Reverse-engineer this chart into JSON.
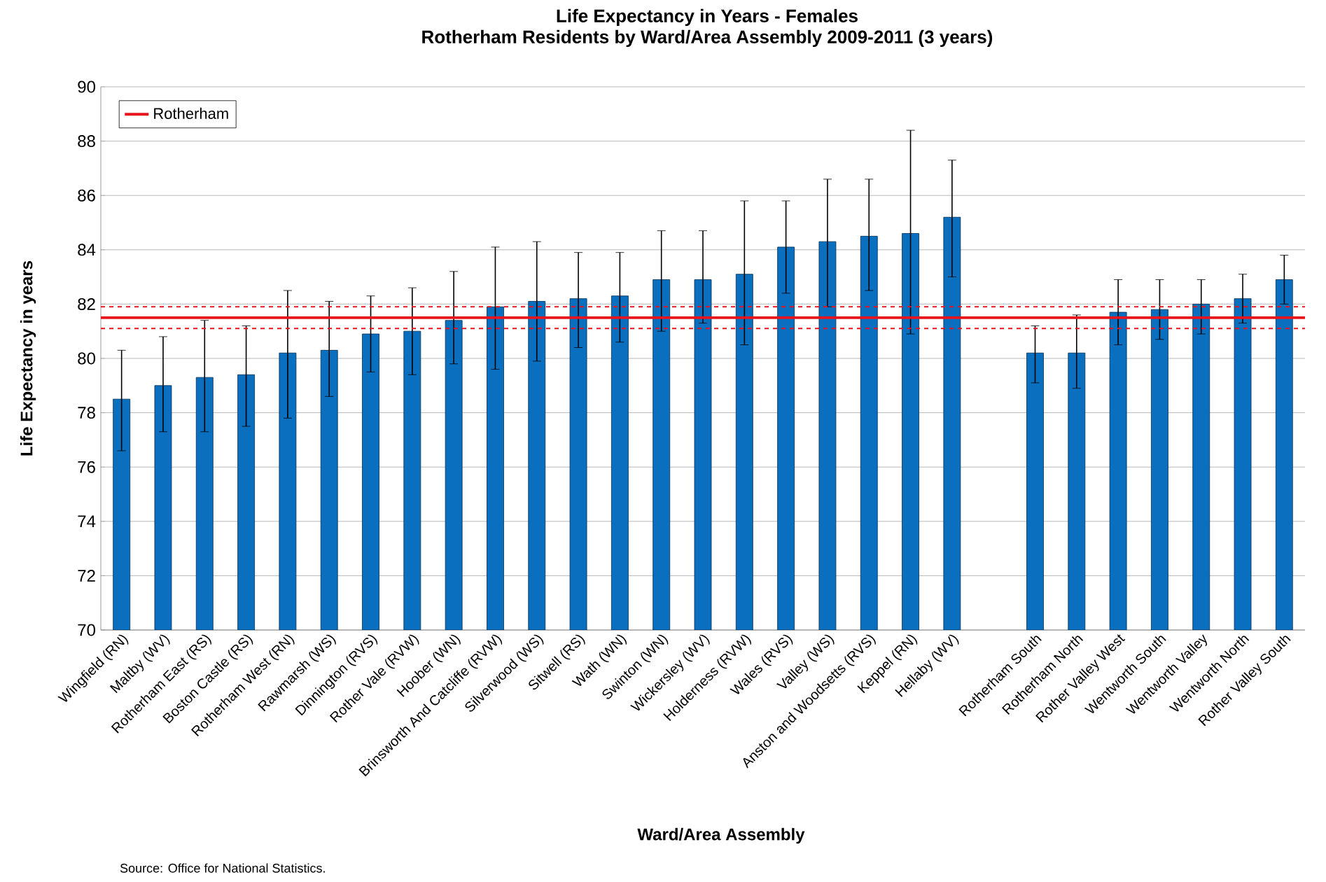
{
  "chart_data": {
    "type": "bar",
    "title": "Life Expectancy in Years - Females",
    "subtitle": "Rotherham Residents by Ward/Area Assembly 2009-2011 (3 years)",
    "xlabel": "Ward/Area Assembly",
    "ylabel": "Life Expectancy in years",
    "categories": [
      "Wingfield (RN)",
      "Maltby (WV)",
      "Rotherham East (RS)",
      "Boston Castle (RS)",
      "Rotherham West (RN)",
      "Rawmarsh (WS)",
      "Dinnington (RVS)",
      "Rother Vale (RVW)",
      "Hoober (WN)",
      "Brinsworth And Catcliffe (RVW)",
      "Silverwood (WS)",
      "Sitwell (RS)",
      "Wath (WN)",
      "Swinton (WN)",
      "Wickersley (WV)",
      "Holderness (RVW)",
      "Wales (RVS)",
      "Valley (WS)",
      "Anston and Woodsetts (RVS)",
      "Keppel (RN)",
      "Hellaby (WV)",
      null,
      "Rotherham South",
      "Rotherham North",
      "Rother Valley West",
      "Wentworth South",
      "Wentworth Valley",
      "Wentworth North",
      "Rother Valley South"
    ],
    "values": [
      78.5,
      79.0,
      79.3,
      79.4,
      80.2,
      80.3,
      80.9,
      81.0,
      81.4,
      81.9,
      82.1,
      82.2,
      82.3,
      82.9,
      82.9,
      83.1,
      84.1,
      84.3,
      84.5,
      84.6,
      85.2,
      null,
      80.2,
      80.2,
      81.7,
      81.8,
      82.0,
      82.2,
      82.9
    ],
    "errors": [
      [
        76.6,
        80.3
      ],
      [
        77.3,
        80.8
      ],
      [
        77.3,
        81.4
      ],
      [
        77.5,
        81.2
      ],
      [
        77.8,
        82.5
      ],
      [
        78.6,
        82.1
      ],
      [
        79.5,
        82.3
      ],
      [
        79.4,
        82.6
      ],
      [
        79.8,
        83.2
      ],
      [
        79.6,
        84.1
      ],
      [
        79.9,
        84.3
      ],
      [
        80.4,
        83.9
      ],
      [
        80.6,
        83.9
      ],
      [
        81.0,
        84.7
      ],
      [
        81.3,
        84.7
      ],
      [
        80.5,
        85.8
      ],
      [
        82.4,
        85.8
      ],
      [
        81.9,
        86.6
      ],
      [
        82.5,
        86.6
      ],
      [
        80.9,
        88.4
      ],
      [
        83.0,
        87.3
      ],
      null,
      [
        79.1,
        81.2
      ],
      [
        78.9,
        81.6
      ],
      [
        80.5,
        82.9
      ],
      [
        80.7,
        82.9
      ],
      [
        80.9,
        82.9
      ],
      [
        81.3,
        83.1
      ],
      [
        82.0,
        83.8
      ]
    ],
    "color": "#0b6fc0",
    "ylim": [
      70,
      90
    ],
    "yticks": [
      70,
      72,
      74,
      76,
      78,
      80,
      82,
      84,
      86,
      88,
      90
    ],
    "grid": "y",
    "legend": "top left",
    "ref_lines": [
      {
        "axis": "y",
        "value": 81.5,
        "label": "Rotherham",
        "color": "#e8141c",
        "line_style": "solid"
      },
      {
        "axis": "y",
        "value": 81.9,
        "color": "#e8141c",
        "line_style": "dashed"
      },
      {
        "axis": "y",
        "value": 81.1,
        "color": "#e8141c",
        "line_style": "dashed"
      }
    ],
    "annotations": [
      "Source: Office for National Statistics."
    ]
  }
}
